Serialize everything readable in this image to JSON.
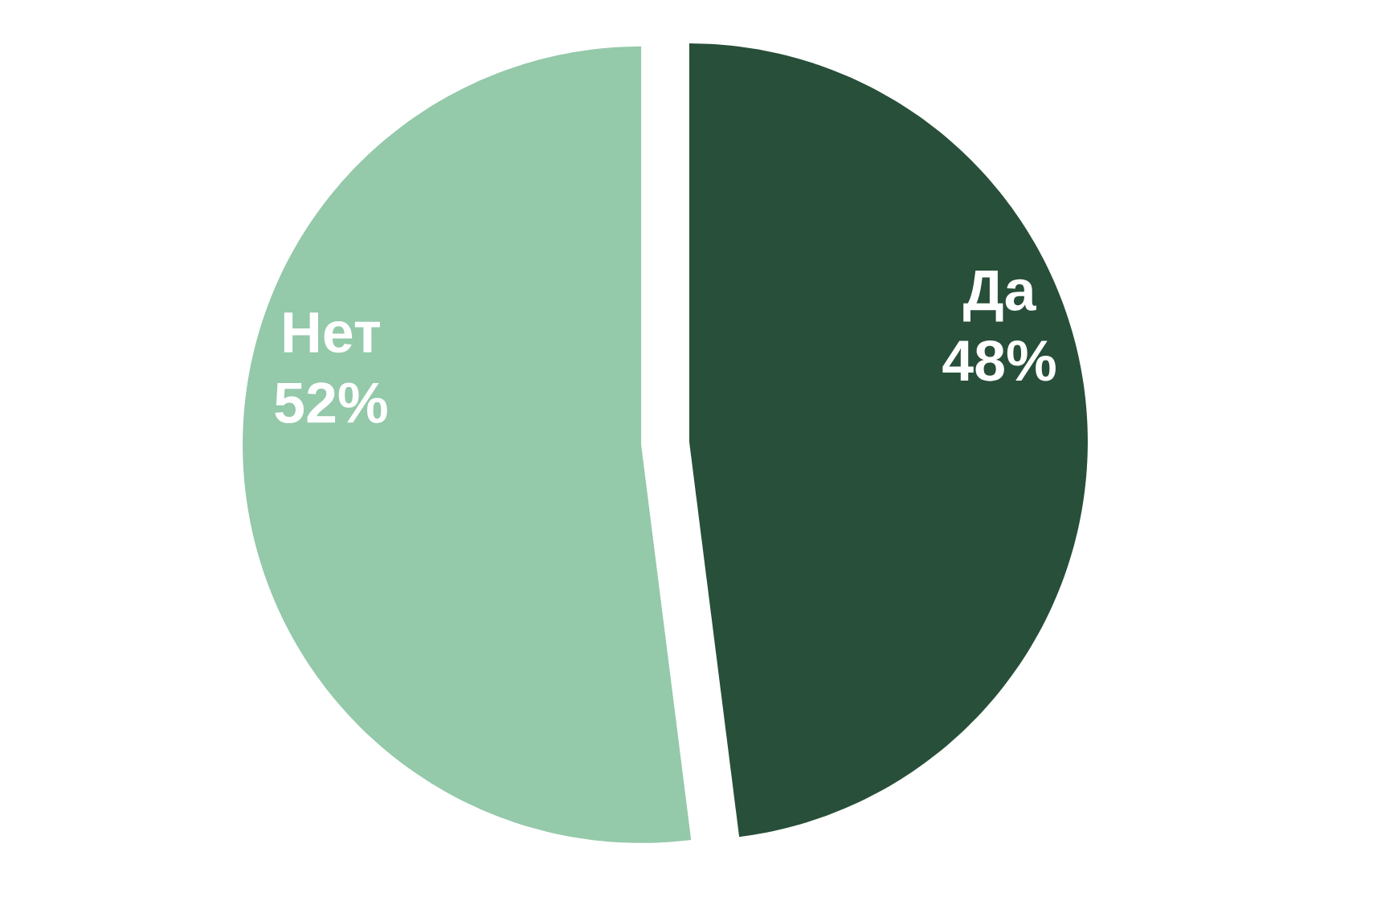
{
  "chart_data": {
    "type": "pie",
    "categories": [
      "Да",
      "Нет"
    ],
    "values": [
      48,
      52
    ],
    "colors": [
      "#284f39",
      "#94c9aa"
    ],
    "value_labels": [
      "48%",
      "52%"
    ]
  }
}
